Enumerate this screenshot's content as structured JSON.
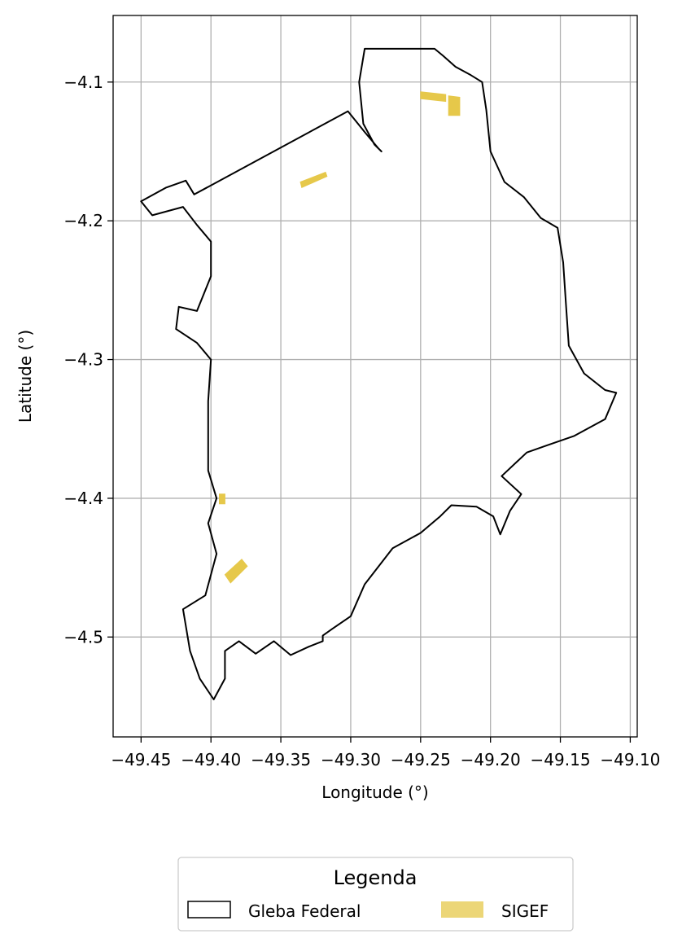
{
  "chart_data": {
    "type": "map",
    "xlabel": "Longitude (°)",
    "ylabel": "Latitude (°)",
    "xlim": [
      -49.47,
      -49.095
    ],
    "ylim": [
      -4.572,
      -4.052
    ],
    "x_ticks": [
      -49.45,
      -49.4,
      -49.35,
      -49.3,
      -49.25,
      -49.2,
      -49.15,
      -49.1
    ],
    "x_tick_labels": [
      "−49.45",
      "−49.40",
      "−49.35",
      "−49.30",
      "−49.25",
      "−49.20",
      "−49.15",
      "−49.10"
    ],
    "y_ticks": [
      -4.1,
      -4.2,
      -4.3,
      -4.4,
      -4.5
    ],
    "y_tick_labels": [
      "−4.1",
      "−4.2",
      "−4.3",
      "−4.4",
      "−4.5"
    ],
    "grid": true,
    "legend": {
      "title": "Legenda",
      "placement": "bottom-center",
      "entries": [
        {
          "label": "Gleba Federal",
          "style": "outline",
          "color": "#000000"
        },
        {
          "label": "SIGEF",
          "style": "fill",
          "color": "#e6c84a"
        }
      ]
    },
    "series": [
      {
        "name": "Gleba Federal",
        "kind": "polygon-outline",
        "color": "#000000",
        "points": [
          [
            -49.29,
            -4.076
          ],
          [
            -49.24,
            -4.076
          ],
          [
            -49.234,
            -4.081
          ],
          [
            -49.225,
            -4.089
          ],
          [
            -49.214,
            -4.095
          ],
          [
            -49.206,
            -4.1
          ],
          [
            -49.203,
            -4.12
          ],
          [
            -49.2,
            -4.15
          ],
          [
            -49.19,
            -4.172
          ],
          [
            -49.176,
            -4.183
          ],
          [
            -49.164,
            -4.198
          ],
          [
            -49.152,
            -4.205
          ],
          [
            -49.148,
            -4.23
          ],
          [
            -49.146,
            -4.26
          ],
          [
            -49.144,
            -4.29
          ],
          [
            -49.133,
            -4.31
          ],
          [
            -49.118,
            -4.322
          ],
          [
            -49.11,
            -4.324
          ],
          [
            -49.118,
            -4.343
          ],
          [
            -49.14,
            -4.355
          ],
          [
            -49.16,
            -4.362
          ],
          [
            -49.174,
            -4.367
          ],
          [
            -49.192,
            -4.384
          ],
          [
            -49.178,
            -4.397
          ],
          [
            -49.186,
            -4.409
          ],
          [
            -49.193,
            -4.426
          ],
          [
            -49.198,
            -4.413
          ],
          [
            -49.21,
            -4.406
          ],
          [
            -49.228,
            -4.405
          ],
          [
            -49.236,
            -4.413
          ],
          [
            -49.25,
            -4.425
          ],
          [
            -49.27,
            -4.436
          ],
          [
            -49.29,
            -4.462
          ],
          [
            -49.3,
            -4.485
          ],
          [
            -49.313,
            -4.494
          ],
          [
            -49.32,
            -4.499
          ],
          [
            -49.32,
            -4.503
          ],
          [
            -49.33,
            -4.507
          ],
          [
            -49.343,
            -4.513
          ],
          [
            -49.355,
            -4.503
          ],
          [
            -49.368,
            -4.512
          ],
          [
            -49.38,
            -4.503
          ],
          [
            -49.39,
            -4.51
          ],
          [
            -49.39,
            -4.53
          ],
          [
            -49.398,
            -4.545
          ],
          [
            -49.408,
            -4.53
          ],
          [
            -49.415,
            -4.51
          ],
          [
            -49.42,
            -4.48
          ],
          [
            -49.404,
            -4.47
          ],
          [
            -49.396,
            -4.44
          ],
          [
            -49.402,
            -4.418
          ],
          [
            -49.396,
            -4.4
          ],
          [
            -49.402,
            -4.38
          ],
          [
            -49.402,
            -4.33
          ],
          [
            -49.4,
            -4.3
          ],
          [
            -49.41,
            -4.288
          ],
          [
            -49.425,
            -4.278
          ],
          [
            -49.423,
            -4.262
          ],
          [
            -49.41,
            -4.265
          ],
          [
            -49.4,
            -4.24
          ],
          [
            -49.4,
            -4.215
          ],
          [
            -49.41,
            -4.203
          ],
          [
            -49.42,
            -4.19
          ],
          [
            -49.442,
            -4.196
          ],
          [
            -49.45,
            -4.186
          ],
          [
            -49.432,
            -4.176
          ],
          [
            -49.418,
            -4.171
          ],
          [
            -49.412,
            -4.181
          ],
          [
            -49.302,
            -4.121
          ],
          [
            -49.29,
            -4.136
          ],
          [
            -49.28,
            -4.148
          ],
          [
            -49.278,
            -4.15
          ],
          [
            -49.283,
            -4.145
          ],
          [
            -49.291,
            -4.13
          ],
          [
            -49.294,
            -4.1
          ],
          [
            -49.29,
            -4.076
          ]
        ]
      },
      {
        "name": "SIGEF",
        "kind": "parcels",
        "color": "#e6c84a",
        "shapes": [
          [
            [
              -49.25,
              -4.107
            ],
            [
              -49.232,
              -4.109
            ],
            [
              -49.232,
              -4.114
            ],
            [
              -49.25,
              -4.112
            ]
          ],
          [
            [
              -49.23,
              -4.11
            ],
            [
              -49.222,
              -4.111
            ],
            [
              -49.222,
              -4.124
            ],
            [
              -49.23,
              -4.124
            ]
          ],
          [
            [
              -49.336,
              -4.172
            ],
            [
              -49.318,
              -4.165
            ],
            [
              -49.317,
              -4.168
            ],
            [
              -49.335,
              -4.176
            ]
          ],
          [
            [
              -49.394,
              -4.397
            ],
            [
              -49.39,
              -4.397
            ],
            [
              -49.39,
              -4.404
            ],
            [
              -49.394,
              -4.404
            ]
          ],
          [
            [
              -49.39,
              -4.455
            ],
            [
              -49.378,
              -4.444
            ],
            [
              -49.374,
              -4.449
            ],
            [
              -49.386,
              -4.461
            ]
          ]
        ]
      }
    ]
  }
}
